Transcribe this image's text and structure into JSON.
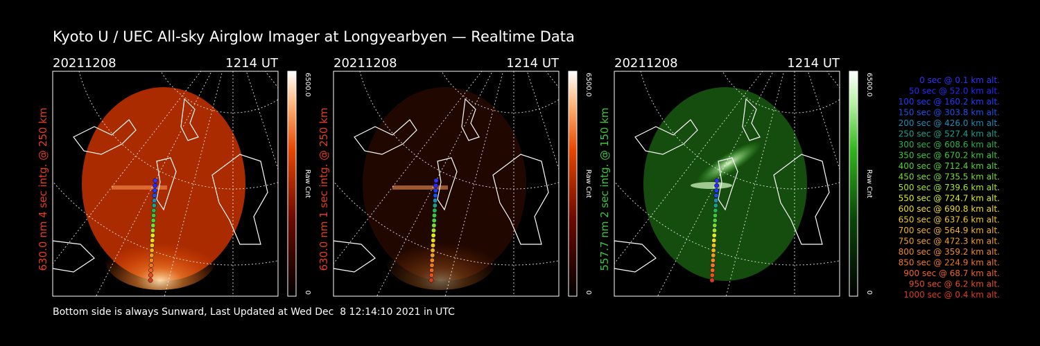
{
  "title": "Kyoto U / UEC All-sky Airglow Imager at Longyearbyen — Realtime Data",
  "footer": "Bottom side is always Sunward, Last Updated at Wed Dec  8 12:14:10 2021 in UTC",
  "colors": {
    "background": "#000000",
    "text": "#ffffff",
    "red_label": "#e83c1e",
    "green_label": "#3cc83c",
    "map_lines": "#ffffff"
  },
  "chart_data": [
    {
      "type": "heatmap",
      "date": "20211208",
      "time": "1214 UT",
      "ylabel": "630.0 nm 4 sec intg. @ 250 km",
      "colorbar": {
        "max_label": "6500.0",
        "min_label": "0",
        "unit_label": "Raw Cnt",
        "range": [
          0,
          6500
        ],
        "colormap": "red"
      },
      "image_color": "#c83200",
      "brightness": 0.85
    },
    {
      "type": "heatmap",
      "date": "20211208",
      "time": "1214 UT",
      "ylabel": "630.0 nm 1 sec intg. @ 250 km",
      "colorbar": {
        "max_label": "6500.0",
        "min_label": "0",
        "unit_label": "Raw Cnt",
        "range": [
          0,
          6500
        ],
        "colormap": "red"
      },
      "image_color": "#501400",
      "brightness": 0.4
    },
    {
      "type": "heatmap",
      "date": "20211208",
      "time": "1214 UT",
      "ylabel": "557.7 nm 2 sec intg. @ 150 km",
      "colorbar": {
        "max_label": "6500.0",
        "min_label": "0",
        "unit_label": "Raw Cnt",
        "range": [
          0,
          6500
        ],
        "colormap": "green"
      },
      "image_color": "#1e6e14",
      "brightness": 0.7
    }
  ],
  "trajectory": {
    "legend": [
      {
        "label": "0 sec @    0.1 km alt.",
        "color": "#3232ff"
      },
      {
        "label": "50 sec @   52.0 km alt.",
        "color": "#2828ff"
      },
      {
        "label": "100 sec @  160.2 km alt.",
        "color": "#1e3cff"
      },
      {
        "label": "150 sec @  303.8 km alt.",
        "color": "#1e50e6"
      },
      {
        "label": "200 sec @  426.0 km alt.",
        "color": "#1e8cb4"
      },
      {
        "label": "250 sec @  527.4 km alt.",
        "color": "#1ea08c"
      },
      {
        "label": "300 sec @  608.6 km alt.",
        "color": "#28b450"
      },
      {
        "label": "350 sec @  670.2 km alt.",
        "color": "#3cc83c"
      },
      {
        "label": "400 sec @  712.4 km alt.",
        "color": "#50d232"
      },
      {
        "label": "450 sec @  735.5 km alt.",
        "color": "#78dc32"
      },
      {
        "label": "500 sec @  739.6 km alt.",
        "color": "#aae628"
      },
      {
        "label": "550 sec @  724.7 km alt.",
        "color": "#dcf01e"
      },
      {
        "label": "600 sec @  690.8 km alt.",
        "color": "#f0dc1e"
      },
      {
        "label": "650 sec @  637.6 km alt.",
        "color": "#f0c81e"
      },
      {
        "label": "700 sec @  564.9 km alt.",
        "color": "#f0b41e"
      },
      {
        "label": "750 sec @  472.3 km alt.",
        "color": "#f0a01e"
      },
      {
        "label": "800 sec @  359.2 km alt.",
        "color": "#f08c1e"
      },
      {
        "label": "850 sec @  224.9 km alt.",
        "color": "#f0781e"
      },
      {
        "label": "900 sec @   68.7 km alt.",
        "color": "#f0641e"
      },
      {
        "label": "950 sec @    6.2 km alt.",
        "color": "#e6501e"
      },
      {
        "label": "1000 sec @    0.4 km alt.",
        "color": "#dc3c1e"
      }
    ]
  }
}
